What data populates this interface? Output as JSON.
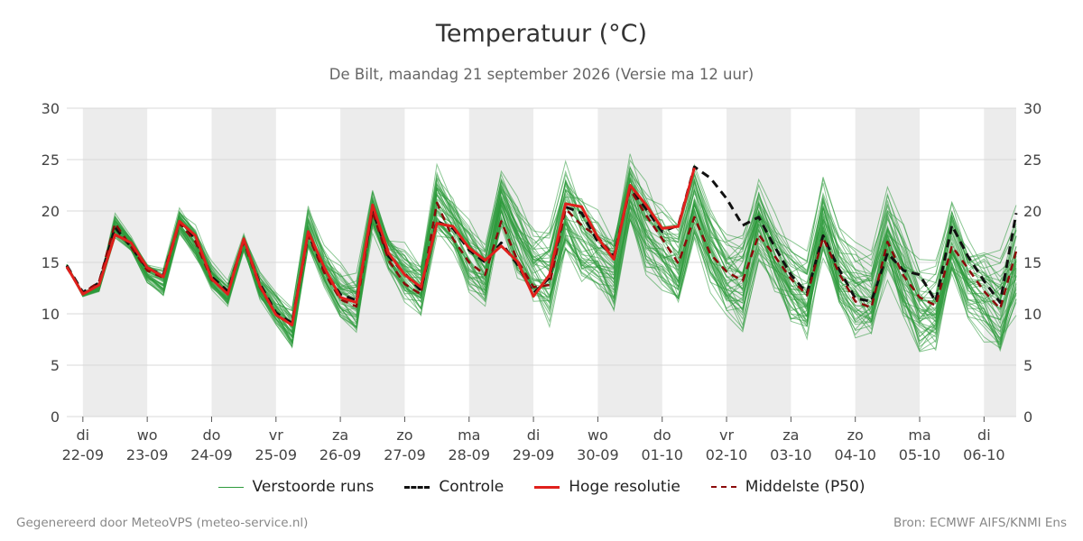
{
  "title": "Temperatuur (°C)",
  "subtitle": "De Bilt, maandag 21 september 2026 (Versie ma 12 uur)",
  "footer_left": "Gegenereerd door MeteoVPS (meteo-service.nl)",
  "footer_right": "Bron: ECMWF AIFS/KNMI Ens",
  "colors": {
    "ensemble": "#2e9a3c",
    "control": "#111111",
    "high_res": "#e0201c",
    "median": "#8b0a0a",
    "weekend_band": "#ececec",
    "grid": "#d8d8d8"
  },
  "chart_data": {
    "type": "line",
    "ylim": [
      0,
      30
    ],
    "yticks": [
      0,
      5,
      10,
      15,
      20,
      25,
      30
    ],
    "x_unit": "day offset from 22-09 00h",
    "xlim": [
      -0.25,
      14.5
    ],
    "weekend_bands": [
      [
        0,
        1
      ],
      [
        2,
        3
      ],
      [
        4,
        5
      ],
      [
        6,
        7
      ],
      [
        8,
        9
      ],
      [
        10,
        11
      ],
      [
        12,
        13
      ],
      [
        14,
        14.5
      ]
    ],
    "x_labels": [
      {
        "day": "di",
        "date": "22-09"
      },
      {
        "day": "wo",
        "date": "23-09"
      },
      {
        "day": "do",
        "date": "24-09"
      },
      {
        "day": "vr",
        "date": "25-09"
      },
      {
        "day": "za",
        "date": "26-09"
      },
      {
        "day": "zo",
        "date": "27-09"
      },
      {
        "day": "ma",
        "date": "28-09"
      },
      {
        "day": "di",
        "date": "29-09"
      },
      {
        "day": "wo",
        "date": "30-09"
      },
      {
        "day": "do",
        "date": "01-10"
      },
      {
        "day": "vr",
        "date": "02-10"
      },
      {
        "day": "za",
        "date": "03-10"
      },
      {
        "day": "zo",
        "date": "04-10"
      },
      {
        "day": "ma",
        "date": "05-10"
      },
      {
        "day": "di",
        "date": "06-10"
      }
    ],
    "legend": [
      {
        "key": "ensemble",
        "label": "Verstoorde runs"
      },
      {
        "key": "control",
        "label": "Controle"
      },
      {
        "key": "high_res",
        "label": "Hoge resolutie"
      },
      {
        "key": "median",
        "label": "Middelste (P50)"
      }
    ],
    "series": {
      "high_res": {
        "x": [
          -0.25,
          0,
          0.25,
          0.5,
          0.75,
          1,
          1.25,
          1.5,
          1.75,
          2,
          2.25,
          2.5,
          2.75,
          3,
          3.25,
          3.5,
          3.75,
          4,
          4.25,
          4.5,
          4.75,
          5,
          5.25,
          5.5,
          5.75,
          6,
          6.25,
          6.5,
          6.75,
          7,
          7.25,
          7.5,
          7.75,
          8,
          8.25,
          8.5,
          8.75,
          9,
          9.25,
          9.5
        ],
        "y": [
          14.6,
          11.9,
          12.8,
          17.7,
          16.9,
          14.5,
          13.6,
          19.0,
          17.6,
          13.4,
          11.9,
          17.3,
          12.7,
          9.9,
          8.9,
          18.0,
          14.5,
          11.6,
          11.1,
          20.6,
          15.9,
          13.8,
          12.6,
          18.8,
          18.5,
          16.4,
          15.2,
          16.6,
          15.1,
          11.7,
          13.8,
          20.7,
          20.4,
          17.4,
          15.3,
          22.5,
          20.6,
          18.3,
          18.5,
          24.2
        ]
      },
      "control": {
        "x": [
          -0.25,
          0,
          0.25,
          0.5,
          0.75,
          1,
          1.25,
          1.5,
          1.75,
          2,
          2.25,
          2.5,
          2.75,
          3,
          3.25,
          3.5,
          3.75,
          4,
          4.25,
          4.5,
          4.75,
          5,
          5.25,
          5.5,
          5.75,
          6,
          6.25,
          6.5,
          6.75,
          7,
          7.25,
          7.5,
          7.75,
          8,
          8.25,
          8.5,
          8.75,
          9,
          9.25,
          9.5,
          9.75,
          10,
          10.25,
          10.5,
          10.75,
          11,
          11.25,
          11.5,
          11.75,
          12,
          12.25,
          12.5,
          12.75,
          13,
          13.25,
          13.5,
          13.75,
          14,
          14.25,
          14.5
        ],
        "y": [
          14.7,
          12.1,
          13.0,
          18.4,
          16.5,
          14.4,
          13.8,
          18.9,
          17.3,
          13.6,
          12.2,
          17.1,
          12.9,
          10.1,
          9.1,
          17.8,
          14.2,
          11.9,
          11.3,
          20.1,
          15.6,
          13.9,
          12.3,
          19.0,
          18.3,
          16.2,
          15.0,
          16.9,
          14.8,
          12.0,
          13.5,
          20.4,
          19.8,
          17.0,
          15.6,
          22.3,
          20.2,
          18.0,
          18.6,
          24.3,
          23.2,
          21.2,
          18.6,
          19.4,
          16.5,
          13.8,
          12.0,
          17.6,
          14.3,
          11.5,
          11.2,
          15.9,
          14.2,
          13.8,
          11.2,
          18.6,
          15.6,
          13.2,
          11.1,
          19.8
        ]
      },
      "median": {
        "x": [
          -0.25,
          0,
          0.25,
          0.5,
          0.75,
          1,
          1.25,
          1.5,
          1.75,
          2,
          2.25,
          2.5,
          2.75,
          3,
          3.25,
          3.5,
          3.75,
          4,
          4.25,
          4.5,
          4.75,
          5,
          5.25,
          5.5,
          5.75,
          6,
          6.25,
          6.5,
          6.75,
          7,
          7.25,
          7.5,
          7.75,
          8,
          8.25,
          8.5,
          8.75,
          9,
          9.25,
          9.5,
          9.75,
          10,
          10.25,
          10.5,
          10.75,
          11,
          11.25,
          11.5,
          11.75,
          12,
          12.25,
          12.5,
          12.75,
          13,
          13.25,
          13.5,
          13.75,
          14,
          14.25,
          14.5
        ],
        "y": [
          14.5,
          12.0,
          13.1,
          18.8,
          16.5,
          14.2,
          13.5,
          18.8,
          17.0,
          13.3,
          12.0,
          17.0,
          12.6,
          9.9,
          9.0,
          17.6,
          14.0,
          11.4,
          10.7,
          19.9,
          15.2,
          12.9,
          11.9,
          20.8,
          17.3,
          15.0,
          13.8,
          19.0,
          15.2,
          12.6,
          12.8,
          20.2,
          18.6,
          17.5,
          15.6,
          22.1,
          19.6,
          17.3,
          14.9,
          19.4,
          15.8,
          14.1,
          13.2,
          17.7,
          15.6,
          13.4,
          11.8,
          17.4,
          13.9,
          11.2,
          10.6,
          17.0,
          13.7,
          11.6,
          10.8,
          16.6,
          14.4,
          12.2,
          10.5,
          16.1
        ]
      }
    },
    "ensemble": {
      "n_members": 50,
      "x_step": 0.25,
      "min": [
        14.3,
        11.2,
        11.4,
        17.3,
        15.9,
        12.8,
        11.5,
        17.6,
        15.1,
        12.1,
        10.4,
        15.8,
        11.1,
        8.4,
        6.1,
        15.8,
        12.1,
        8.9,
        7.8,
        17.6,
        13.8,
        10.8,
        9.3,
        17.2,
        15.3,
        11.5,
        10.4,
        17.8,
        13.1,
        10.3,
        8.6,
        15.0,
        11.9,
        11.7,
        9.7,
        18.1,
        13.3,
        11.8,
        10.0,
        17.0,
        11.9,
        9.2,
        7.6,
        14.7,
        11.2,
        8.1,
        6.6,
        14.8,
        9.3,
        7.2,
        6.4,
        13.0,
        8.9,
        5.1,
        5.5,
        12.7,
        9.2,
        7.1,
        4.7,
        9.1
      ],
      "max": [
        15.1,
        12.6,
        13.6,
        20.0,
        17.6,
        15.3,
        14.6,
        20.6,
        18.9,
        15.2,
        13.4,
        18.1,
        14.2,
        12.7,
        11.0,
        20.7,
        17.0,
        15.2,
        14.3,
        22.5,
        18.2,
        17.1,
        15.6,
        24.8,
        22.3,
        20.1,
        17.2,
        24.6,
        22.2,
        19.1,
        19.1,
        25.6,
        22.6,
        20.3,
        19.5,
        26.0,
        23.4,
        21.2,
        20.0,
        25.2,
        21.3,
        18.6,
        19.6,
        24.3,
        20.4,
        17.9,
        16.5,
        23.8,
        19.0,
        17.6,
        16.8,
        23.1,
        19.4,
        16.5,
        15.6,
        21.4,
        18.0,
        17.6,
        17.3,
        20.9
      ]
    }
  }
}
